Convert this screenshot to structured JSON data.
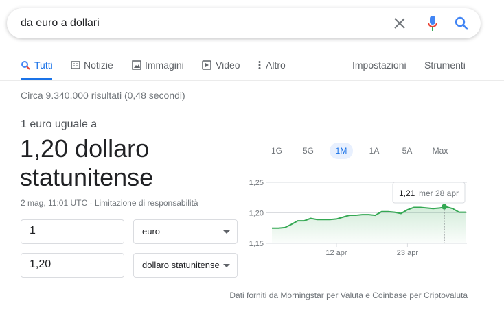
{
  "search": {
    "query": "da euro a dollari"
  },
  "tabs": [
    "Tutti",
    "Notizie",
    "Immagini",
    "Video",
    "Altro"
  ],
  "tools": [
    "Impostazioni",
    "Strumenti"
  ],
  "results_info": "Circa 9.340.000 risultati (0,48 secondi)",
  "converter": {
    "heading": "1 euro uguale a",
    "result": "1,20 dollaro statunitense",
    "timestamp": "2 mag, 11:01 UTC ·",
    "disclaimer": "Limitazione di responsabilità",
    "from_amount": "1",
    "from_currency": "euro",
    "to_amount": "1,20",
    "to_currency": "dollaro statunitense",
    "source": "Dati forniti da Morningstar per Valuta e Coinbase per Criptovaluta"
  },
  "chart_data": {
    "type": "line",
    "ranges": [
      "1G",
      "5G",
      "1M",
      "1A",
      "5A",
      "Max"
    ],
    "selected_range": "1M",
    "categories": [
      null,
      null,
      null,
      null,
      null,
      null,
      null,
      null,
      null,
      null,
      "12 apr",
      null,
      null,
      null,
      null,
      null,
      null,
      null,
      null,
      null,
      null,
      "23 apr",
      null,
      null,
      null,
      null,
      null,
      null,
      null,
      null,
      null
    ],
    "values": [
      1.175,
      1.175,
      1.176,
      1.181,
      1.187,
      1.187,
      1.191,
      1.189,
      1.189,
      1.189,
      1.19,
      1.193,
      1.196,
      1.196,
      1.197,
      1.197,
      1.196,
      1.202,
      1.202,
      1.201,
      1.199,
      1.205,
      1.209,
      1.209,
      1.208,
      1.207,
      1.208,
      1.21,
      1.207,
      1.201,
      1.201
    ],
    "color": "#34a853",
    "ylim": [
      1.15,
      1.25
    ],
    "yticks": [
      {
        "value": 1.15,
        "label": "1,15"
      },
      {
        "value": 1.2,
        "label": "1,20"
      },
      {
        "value": 1.25,
        "label": "1,25"
      }
    ],
    "grid": true,
    "tooltip": {
      "value": 1.21,
      "label": "1,21",
      "date": "mer 28 apr"
    }
  }
}
